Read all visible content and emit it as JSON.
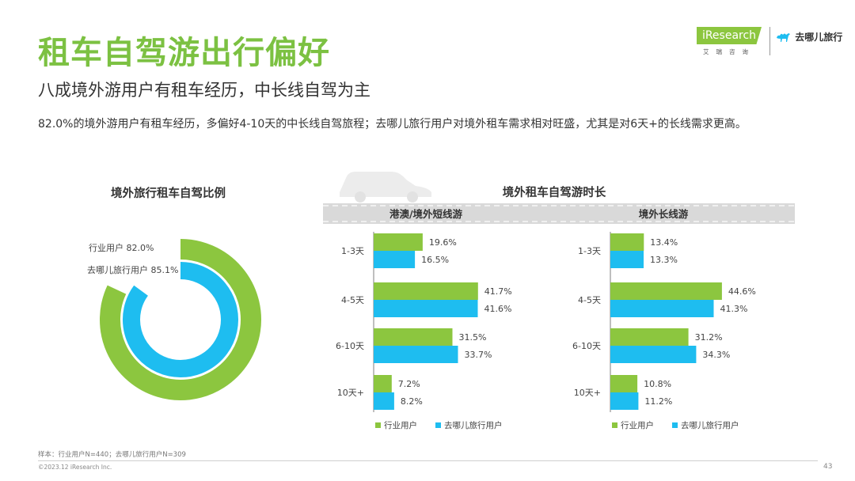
{
  "header": {
    "title": "租车自驾游出行偏好",
    "subtitle": "八成境外游用户有租车经历，中长线自驾为主",
    "description": "82.0%的境外游用户有租车经历，多偏好4-10天的中长线自驾旅程；去哪儿旅行用户对境外租车需求相对旺盛，尤其是对6天+的长线需求更高。"
  },
  "logos": {
    "iresearch_word": "iResearch",
    "iresearch_sub": "艾瑞咨询",
    "qunar": "去哪儿旅行",
    "icons": [
      "iresearch-logo-icon",
      "qunar-camel-icon",
      "car-silhouette-icon"
    ]
  },
  "colors": {
    "industry": "#8cc63f",
    "qunar": "#1ebdf0",
    "title_green": "#7cc142",
    "road": "#d9d9d9"
  },
  "chart_data": [
    {
      "type": "pie",
      "title": "境外旅行租车自驾比例",
      "style": "concentric-rings",
      "series": [
        {
          "name": "行业用户",
          "value": 82.0,
          "label": "82.0%"
        },
        {
          "name": "去哪儿旅行用户",
          "value": 85.1,
          "label": "85.1%"
        }
      ]
    },
    {
      "type": "bar",
      "orientation": "horizontal",
      "title": "境外租车自驾游时长",
      "categories": [
        "1-3天",
        "4-5天",
        "6-10天",
        "10天+"
      ],
      "legend": [
        "行业用户",
        "去哪儿旅行用户"
      ],
      "panels": [
        {
          "title": "港澳/境外短线游",
          "series": [
            {
              "name": "行业用户",
              "values": [
                19.6,
                41.7,
                31.5,
                7.2
              ],
              "labels": [
                "19.6%",
                "41.7%",
                "31.5%",
                "7.2%"
              ]
            },
            {
              "name": "去哪儿旅行用户",
              "values": [
                16.5,
                41.6,
                33.7,
                8.2
              ],
              "labels": [
                "16.5%",
                "41.6%",
                "33.7%",
                "8.2%"
              ]
            }
          ]
        },
        {
          "title": "境外长线游",
          "series": [
            {
              "name": "行业用户",
              "values": [
                13.4,
                44.6,
                31.2,
                10.8
              ],
              "labels": [
                "13.4%",
                "44.6%",
                "31.2%",
                "10.8%"
              ]
            },
            {
              "name": "去哪儿旅行用户",
              "values": [
                13.3,
                41.3,
                34.3,
                11.2
              ],
              "labels": [
                "13.3%",
                "41.3%",
                "34.3%",
                "11.2%"
              ]
            }
          ]
        }
      ]
    }
  ],
  "footer": {
    "sample": "样本：行业用户N=440；去哪儿旅行用户N=309",
    "copyright": "©2023.12 iResearch Inc.",
    "page": "43"
  }
}
